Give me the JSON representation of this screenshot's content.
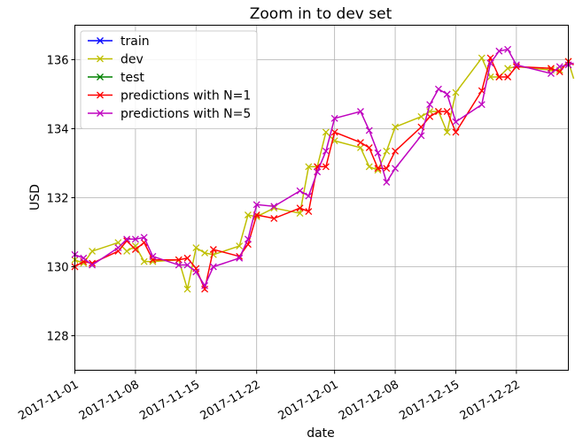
{
  "chart_data": {
    "type": "line",
    "title": "Zoom in to dev set",
    "xlabel": "date",
    "ylabel": "USD",
    "xlim": [
      "2017-11-01",
      "2017-12-28"
    ],
    "ylim": [
      127,
      137
    ],
    "x_ticks": [
      "2017-11-01",
      "2017-11-08",
      "2017-11-15",
      "2017-11-22",
      "2017-12-01",
      "2017-12-08",
      "2017-12-15",
      "2017-12-22"
    ],
    "y_ticks": [
      128,
      130,
      132,
      134,
      136
    ],
    "grid": true,
    "legend_position": "top-left",
    "series": [
      {
        "name": "train",
        "color": "#0000ff",
        "marker": "x",
        "x": [],
        "y": []
      },
      {
        "name": "dev",
        "color": "#bfbf00",
        "marker": "x",
        "x": [
          "2017-11-01",
          "2017-11-02",
          "2017-11-03",
          "2017-11-06",
          "2017-11-07",
          "2017-11-08",
          "2017-11-09",
          "2017-11-10",
          "2017-11-13",
          "2017-11-14",
          "2017-11-15",
          "2017-11-16",
          "2017-11-17",
          "2017-11-20",
          "2017-11-21",
          "2017-11-22",
          "2017-11-24",
          "2017-11-27",
          "2017-11-28",
          "2017-11-29",
          "2017-11-30",
          "2017-12-01",
          "2017-12-04",
          "2017-12-05",
          "2017-12-06",
          "2017-12-07",
          "2017-12-08",
          "2017-12-11",
          "2017-12-12",
          "2017-12-13",
          "2017-12-14",
          "2017-12-15",
          "2017-12-18",
          "2017-12-19",
          "2017-12-20",
          "2017-12-21",
          "2017-12-22",
          "2017-12-26",
          "2017-12-27",
          "2017-12-28",
          "2017-12-29"
        ],
        "y": [
          130.2,
          130.1,
          130.45,
          130.7,
          130.45,
          130.6,
          130.15,
          130.15,
          130.2,
          129.35,
          130.55,
          130.4,
          130.35,
          130.6,
          131.5,
          131.45,
          131.7,
          131.55,
          132.9,
          132.9,
          133.9,
          133.65,
          133.45,
          132.9,
          132.8,
          133.35,
          134.05,
          134.35,
          134.5,
          134.5,
          133.9,
          135.05,
          136.05,
          135.5,
          135.5,
          135.75,
          135.8,
          135.7,
          135.7,
          135.95,
          135.45
        ]
      },
      {
        "name": "test",
        "color": "#008000",
        "marker": "x",
        "x": [],
        "y": []
      },
      {
        "name": "predictions with N=1",
        "color": "#ff0000",
        "marker": "x",
        "x": [
          "2017-11-01",
          "2017-11-02",
          "2017-11-03",
          "2017-11-06",
          "2017-11-07",
          "2017-11-08",
          "2017-11-09",
          "2017-11-10",
          "2017-11-13",
          "2017-11-14",
          "2017-11-15",
          "2017-11-16",
          "2017-11-17",
          "2017-11-20",
          "2017-11-21",
          "2017-11-22",
          "2017-11-24",
          "2017-11-27",
          "2017-11-28",
          "2017-11-29",
          "2017-11-30",
          "2017-12-01",
          "2017-12-04",
          "2017-12-05",
          "2017-12-06",
          "2017-12-07",
          "2017-12-08",
          "2017-12-11",
          "2017-12-12",
          "2017-12-13",
          "2017-12-14",
          "2017-12-15",
          "2017-12-18",
          "2017-12-19",
          "2017-12-20",
          "2017-12-21",
          "2017-12-22",
          "2017-12-26",
          "2017-12-27",
          "2017-12-28",
          "2017-12-29"
        ],
        "y": [
          130.0,
          130.15,
          130.1,
          130.45,
          130.75,
          130.5,
          130.7,
          130.2,
          130.2,
          130.25,
          129.95,
          129.35,
          130.5,
          130.3,
          130.65,
          131.5,
          131.4,
          131.7,
          131.6,
          132.9,
          132.9,
          133.9,
          133.6,
          133.45,
          132.85,
          132.85,
          133.35,
          134.05,
          134.35,
          134.5,
          134.5,
          133.9,
          135.1,
          136.05,
          135.5,
          135.5,
          135.8,
          135.75,
          135.65,
          135.95,
          135.85
        ]
      },
      {
        "name": "predictions with N=5",
        "color": "#bf00bf",
        "marker": "x",
        "x": [
          "2017-11-01",
          "2017-11-02",
          "2017-11-03",
          "2017-11-06",
          "2017-11-07",
          "2017-11-08",
          "2017-11-09",
          "2017-11-10",
          "2017-11-13",
          "2017-11-14",
          "2017-11-15",
          "2017-11-16",
          "2017-11-17",
          "2017-11-20",
          "2017-11-21",
          "2017-11-22",
          "2017-11-24",
          "2017-11-27",
          "2017-11-28",
          "2017-11-29",
          "2017-11-30",
          "2017-12-01",
          "2017-12-04",
          "2017-12-05",
          "2017-12-06",
          "2017-12-07",
          "2017-12-08",
          "2017-12-11",
          "2017-12-12",
          "2017-12-13",
          "2017-12-14",
          "2017-12-15",
          "2017-12-18",
          "2017-12-19",
          "2017-12-20",
          "2017-12-21",
          "2017-12-22",
          "2017-12-26",
          "2017-12-27",
          "2017-12-28",
          "2017-12-29"
        ],
        "y": [
          130.35,
          130.25,
          130.05,
          130.55,
          130.8,
          130.8,
          130.85,
          130.3,
          130.05,
          130.05,
          129.85,
          129.45,
          130.0,
          130.25,
          130.8,
          131.8,
          131.75,
          132.2,
          132.05,
          132.75,
          133.35,
          134.3,
          134.5,
          133.95,
          133.3,
          132.45,
          132.85,
          133.8,
          134.7,
          135.15,
          135.0,
          134.2,
          134.7,
          135.9,
          136.25,
          136.3,
          135.85,
          135.6,
          135.8,
          135.85,
          135.9
        ]
      }
    ]
  }
}
